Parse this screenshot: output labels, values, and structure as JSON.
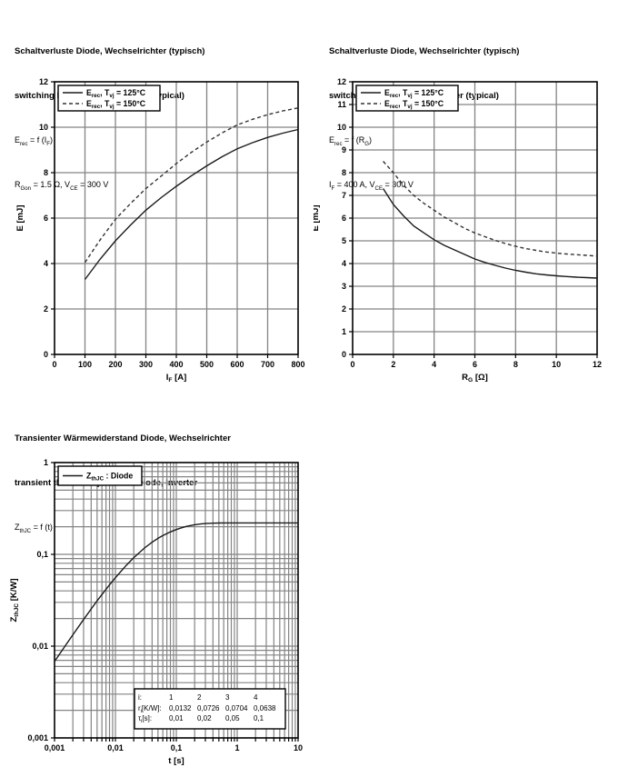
{
  "page": {
    "background": "#ffffff"
  },
  "colors": {
    "grid": "#848484",
    "plot_border": "#000000",
    "curve_solid": "#1a1a1a",
    "curve_dashed": "#333333",
    "text": "#000000",
    "legend_bg": "#ffffff"
  },
  "chart_data": [
    {
      "id": "erec-vs-if",
      "type": "line",
      "title_de": "Schaltverluste Diode, Wechselrichter (typisch)",
      "title_en": "switching losses  Diode, Inverter (typical)",
      "function": "E~rec~ = f (I~F~)",
      "conditions": "R~Gon~ = 1.5 Ω, V~CE~ = 300 V",
      "legend_position": "top-left",
      "grid": true,
      "x": {
        "label": "I~F~ [A]",
        "scale": "linear",
        "min": 0,
        "max": 800,
        "ticks": [
          0,
          100,
          200,
          300,
          400,
          500,
          600,
          700,
          800
        ],
        "tick_labels": [
          "0",
          "100",
          "200",
          "300",
          "400",
          "500",
          "600",
          "700",
          "800"
        ]
      },
      "y": {
        "label": "E [mJ]",
        "scale": "linear",
        "min": 0,
        "max": 12,
        "ticks": [
          0,
          2,
          4,
          6,
          8,
          10,
          12
        ],
        "tick_labels": [
          "0",
          "2",
          "4",
          "6",
          "8",
          "10",
          "12"
        ]
      },
      "series": [
        {
          "name": "E~rec~, T~vj~ = 125°C",
          "style": "solid",
          "points": [
            [
              100,
              3.3
            ],
            [
              150,
              4.2
            ],
            [
              200,
              5.0
            ],
            [
              250,
              5.7
            ],
            [
              300,
              6.35
            ],
            [
              350,
              6.9
            ],
            [
              400,
              7.4
            ],
            [
              450,
              7.87
            ],
            [
              500,
              8.3
            ],
            [
              550,
              8.7
            ],
            [
              600,
              9.05
            ],
            [
              650,
              9.32
            ],
            [
              700,
              9.55
            ],
            [
              750,
              9.74
            ],
            [
              800,
              9.9
            ]
          ]
        },
        {
          "name": "E~rec~, T~vj~ = 150°C",
          "style": "dashed",
          "points": [
            [
              100,
              4.05
            ],
            [
              150,
              5.05
            ],
            [
              200,
              5.95
            ],
            [
              250,
              6.65
            ],
            [
              300,
              7.3
            ],
            [
              350,
              7.85
            ],
            [
              400,
              8.4
            ],
            [
              450,
              8.9
            ],
            [
              500,
              9.35
            ],
            [
              550,
              9.75
            ],
            [
              600,
              10.1
            ],
            [
              650,
              10.35
            ],
            [
              700,
              10.55
            ],
            [
              750,
              10.72
            ],
            [
              800,
              10.85
            ]
          ]
        }
      ]
    },
    {
      "id": "erec-vs-rg",
      "type": "line",
      "title_de": "Schaltverluste Diode, Wechselrichter (typisch)",
      "title_en": "switching losses  Diode, Inverter (typical)",
      "function": "E~rec~ = f (R~G~)",
      "conditions": "I~F~ = 400 A, V~CE~ = 300 V",
      "legend_position": "top-left",
      "grid": true,
      "x": {
        "label": "R~G~ [Ω]",
        "scale": "linear",
        "min": 0,
        "max": 12,
        "ticks": [
          0,
          2,
          4,
          6,
          8,
          10,
          12
        ],
        "tick_labels": [
          "0",
          "2",
          "4",
          "6",
          "8",
          "10",
          "12"
        ]
      },
      "y": {
        "label": "E [mJ]",
        "scale": "linear",
        "min": 0,
        "max": 12,
        "ticks": [
          0,
          1,
          2,
          3,
          4,
          5,
          6,
          7,
          8,
          9,
          10,
          11,
          12
        ],
        "tick_labels": [
          "0",
          "1",
          "2",
          "3",
          "4",
          "5",
          "6",
          "7",
          "8",
          "9",
          "10",
          "11",
          "12"
        ]
      },
      "series": [
        {
          "name": "E~rec~, T~vj~ = 125°C",
          "style": "solid",
          "points": [
            [
              1.5,
              7.3
            ],
            [
              2,
              6.6
            ],
            [
              2.5,
              6.1
            ],
            [
              3,
              5.65
            ],
            [
              3.5,
              5.35
            ],
            [
              4,
              5.05
            ],
            [
              4.5,
              4.8
            ],
            [
              5,
              4.6
            ],
            [
              5.5,
              4.4
            ],
            [
              6,
              4.2
            ],
            [
              6.5,
              4.05
            ],
            [
              7,
              3.92
            ],
            [
              7.5,
              3.8
            ],
            [
              8,
              3.7
            ],
            [
              8.5,
              3.62
            ],
            [
              9,
              3.55
            ],
            [
              9.5,
              3.5
            ],
            [
              10,
              3.46
            ],
            [
              10.5,
              3.43
            ],
            [
              11,
              3.4
            ],
            [
              11.5,
              3.38
            ],
            [
              12,
              3.36
            ]
          ]
        },
        {
          "name": "E~rec~, T~vj~ = 150°C",
          "style": "dashed",
          "points": [
            [
              1.5,
              8.5
            ],
            [
              2,
              8.0
            ],
            [
              2.5,
              7.45
            ],
            [
              3,
              7.0
            ],
            [
              3.5,
              6.65
            ],
            [
              4,
              6.35
            ],
            [
              4.5,
              6.05
            ],
            [
              5,
              5.8
            ],
            [
              5.5,
              5.55
            ],
            [
              6,
              5.35
            ],
            [
              6.5,
              5.18
            ],
            [
              7,
              5.02
            ],
            [
              7.5,
              4.88
            ],
            [
              8,
              4.76
            ],
            [
              8.5,
              4.66
            ],
            [
              9,
              4.58
            ],
            [
              9.5,
              4.51
            ],
            [
              10,
              4.46
            ],
            [
              10.5,
              4.42
            ],
            [
              11,
              4.39
            ],
            [
              11.5,
              4.36
            ],
            [
              12,
              4.33
            ]
          ]
        }
      ]
    },
    {
      "id": "zthjc-vs-t",
      "type": "line",
      "title_de": "Transienter Wärmewiderstand Diode, Wechselrichter",
      "title_en": "transient thermal impedance  Diode, Inverter",
      "function": "Z~thJC~ = f (t)",
      "legend_position": "top-left",
      "grid": true,
      "x": {
        "label": "t [s]",
        "scale": "log",
        "min": 0.001,
        "max": 10,
        "ticks": [
          0.001,
          0.01,
          0.1,
          1,
          10
        ],
        "tick_labels": [
          "0,001",
          "0,01",
          "0,1",
          "1",
          "10"
        ]
      },
      "y": {
        "label": "Z~thJC~ [K/W]",
        "scale": "log",
        "min": 0.001,
        "max": 1,
        "ticks": [
          0.001,
          0.01,
          0.1,
          1
        ],
        "tick_labels": [
          "0,001",
          "0,01",
          "0,1",
          "1"
        ]
      },
      "series": [
        {
          "name": "Z~thJC~ : Diode",
          "style": "solid",
          "points": [
            [
              0.001,
              0.0068
            ],
            [
              0.0015,
              0.0101
            ],
            [
              0.002,
              0.0133
            ],
            [
              0.003,
              0.0195
            ],
            [
              0.004,
              0.0254
            ],
            [
              0.005,
              0.0311
            ],
            [
              0.006,
              0.0364
            ],
            [
              0.008,
              0.0465
            ],
            [
              0.01,
              0.0557
            ],
            [
              0.015,
              0.0757
            ],
            [
              0.02,
              0.0921
            ],
            [
              0.03,
              0.1172
            ],
            [
              0.04,
              0.1355
            ],
            [
              0.05,
              0.1494
            ],
            [
              0.06,
              0.1601
            ],
            [
              0.08,
              0.1758
            ],
            [
              0.1,
              0.1865
            ],
            [
              0.12,
              0.1942
            ],
            [
              0.15,
              0.2022
            ],
            [
              0.2,
              0.2101
            ],
            [
              0.25,
              0.2143
            ],
            [
              0.3,
              0.2166
            ],
            [
              0.4,
              0.2188
            ],
            [
              0.5,
              0.2197
            ],
            [
              0.7,
              0.2199
            ],
            [
              1,
              0.22
            ],
            [
              2,
              0.22
            ],
            [
              3,
              0.22
            ],
            [
              5,
              0.22
            ],
            [
              10,
              0.22
            ]
          ]
        }
      ],
      "model_table": {
        "rows": [
          {
            "label": "i:",
            "values": [
              "1",
              "2",
              "3",
              "4"
            ]
          },
          {
            "label": "r~i~[K/W]:",
            "values": [
              "0,0132",
              "0,0726",
              "0,0704",
              "0,0638"
            ]
          },
          {
            "label": "τ~i~[s]:",
            "values": [
              "0,01",
              "0,02",
              "0,05",
              "0,1"
            ]
          }
        ]
      }
    }
  ]
}
